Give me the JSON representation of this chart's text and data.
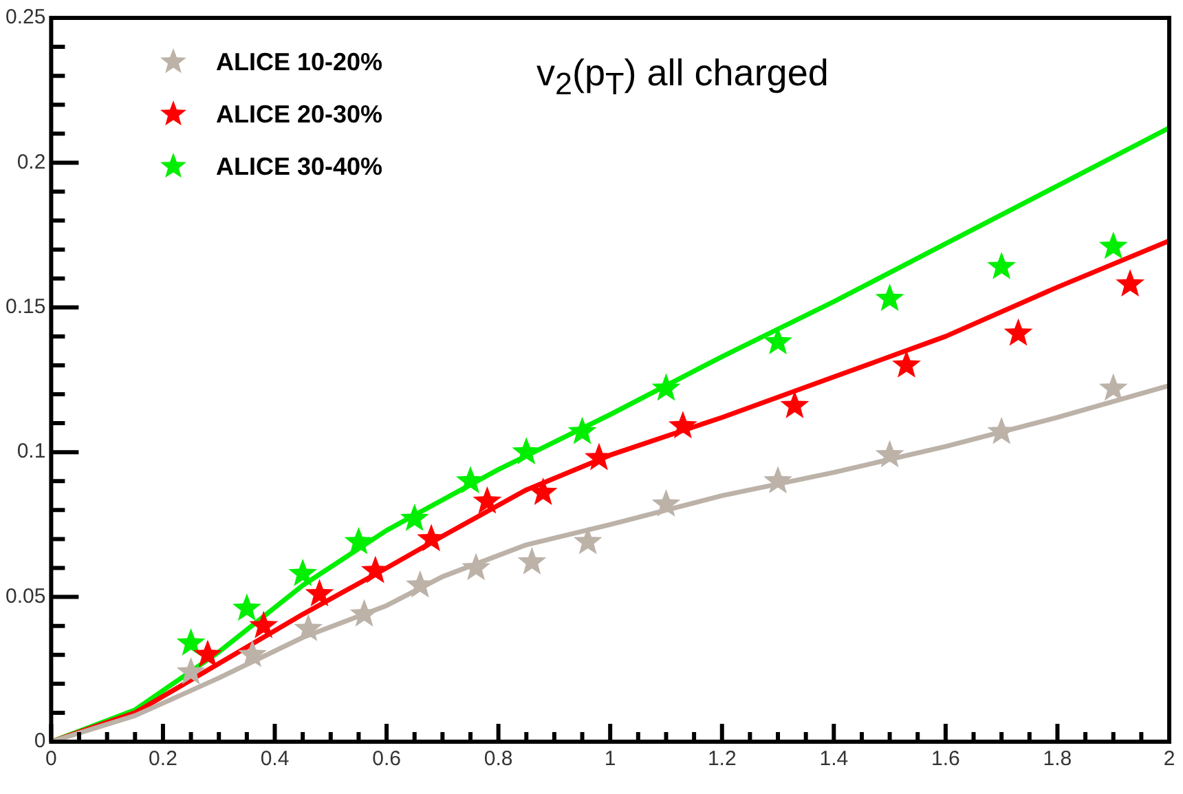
{
  "chart_data": {
    "type": "scatter",
    "annotations": [
      "v$_{2}$(p$_{T}$) all charged"
    ],
    "xlim": [
      0,
      2
    ],
    "xticks": [
      0,
      {
        "value": 0.05,
        "label": null
      },
      {
        "value": 0.1,
        "label": null
      },
      {
        "value": 0.15,
        "label": null
      },
      0.2,
      {
        "value": 0.25,
        "label": null
      },
      {
        "value": 0.3,
        "label": null
      },
      {
        "value": 0.35,
        "label": null
      },
      0.4,
      {
        "value": 0.45,
        "label": null
      },
      {
        "value": 0.5,
        "label": null
      },
      {
        "value": 0.55,
        "label": null
      },
      0.6,
      {
        "value": 0.65,
        "label": null
      },
      {
        "value": 0.7,
        "label": null
      },
      {
        "value": 0.75,
        "label": null
      },
      0.8,
      {
        "value": 0.85,
        "label": null
      },
      {
        "value": 0.9,
        "label": null
      },
      {
        "value": 0.95,
        "label": null
      },
      1,
      {
        "value": 1.05,
        "label": null
      },
      {
        "value": 1.1,
        "label": null
      },
      {
        "value": 1.15,
        "label": null
      },
      1.2,
      {
        "value": 1.25,
        "label": null
      },
      {
        "value": 1.3,
        "label": null
      },
      {
        "value": 1.35,
        "label": null
      },
      1.4,
      {
        "value": 1.45,
        "label": null
      },
      {
        "value": 1.5,
        "label": null
      },
      {
        "value": 1.55,
        "label": null
      },
      1.6,
      {
        "value": 1.65,
        "label": null
      },
      {
        "value": 1.7,
        "label": null
      },
      {
        "value": 1.75,
        "label": null
      },
      1.8,
      {
        "value": 1.85,
        "label": null
      },
      {
        "value": 1.9,
        "label": null
      },
      {
        "value": 1.95,
        "label": null
      },
      2
    ],
    "ylim": [
      0,
      0.25
    ],
    "yticks": [
      0,
      {
        "value": 0.01,
        "label": null
      },
      {
        "value": 0.02,
        "label": null
      },
      {
        "value": 0.03,
        "label": null
      },
      {
        "value": 0.04,
        "label": null
      },
      0.05,
      {
        "value": 0.06,
        "label": null
      },
      {
        "value": 0.07,
        "label": null
      },
      {
        "value": 0.08,
        "label": null
      },
      {
        "value": 0.09,
        "label": null
      },
      0.1,
      {
        "value": 0.11,
        "label": null
      },
      {
        "value": 0.12,
        "label": null
      },
      {
        "value": 0.13,
        "label": null
      },
      {
        "value": 0.14,
        "label": null
      },
      0.15,
      {
        "value": 0.16,
        "label": null
      },
      {
        "value": 0.17,
        "label": null
      },
      {
        "value": 0.18,
        "label": null
      },
      {
        "value": 0.19,
        "label": null
      },
      0.2,
      {
        "value": 0.21,
        "label": null
      },
      {
        "value": 0.22,
        "label": null
      },
      {
        "value": 0.23,
        "label": null
      },
      {
        "value": 0.24,
        "label": null
      },
      0.25
    ],
    "grid": false,
    "legend": "top left",
    "marker": "star",
    "series": [
      {
        "name": "ALICE 10-20%",
        "color": "#bcb2a8",
        "x": [
          0.25,
          0.36,
          0.46,
          0.56,
          0.66,
          0.76,
          0.86,
          0.96,
          1.1,
          1.3,
          1.5,
          1.7,
          1.9
        ],
        "values": [
          0.024,
          0.03,
          0.039,
          0.044,
          0.054,
          0.06,
          0.062,
          0.069,
          0.082,
          0.09,
          0.099,
          0.107,
          0.122
        ]
      },
      {
        "name": "ALICE 20-30%",
        "color": "#ff0000",
        "x": [
          0.28,
          0.38,
          0.48,
          0.58,
          0.68,
          0.78,
          0.88,
          0.98,
          1.13,
          1.33,
          1.53,
          1.73,
          1.93
        ],
        "values": [
          0.03,
          0.04,
          0.051,
          0.059,
          0.07,
          0.083,
          0.086,
          0.098,
          0.109,
          0.116,
          0.13,
          0.141,
          0.158
        ]
      },
      {
        "name": "ALICE 30-40%",
        "color": "#00ee00",
        "x": [
          0.25,
          0.35,
          0.45,
          0.55,
          0.65,
          0.75,
          0.85,
          0.95,
          1.1,
          1.3,
          1.5,
          1.7,
          1.9
        ],
        "values": [
          0.034,
          0.046,
          0.058,
          0.069,
          0.077,
          0.09,
          0.1,
          0.107,
          0.122,
          0.138,
          0.153,
          0.164,
          0.171
        ]
      },
      {
        "type": "line",
        "color": "#bcb2a8",
        "marker": "none",
        "x": [
          0,
          0.15,
          0.3,
          0.45,
          0.6,
          0.7,
          0.85,
          1,
          1.2,
          1.4,
          1.6,
          1.8,
          2
        ],
        "values": [
          0,
          0.009,
          0.022,
          0.036,
          0.047,
          0.057,
          0.068,
          0.075,
          0.085,
          0.093,
          0.102,
          0.112,
          0.123
        ]
      },
      {
        "type": "line",
        "color": "#ff0000",
        "marker": "none",
        "x": [
          0,
          0.15,
          0.3,
          0.45,
          0.6,
          0.7,
          0.85,
          1,
          1.2,
          1.4,
          1.6,
          1.8,
          2
        ],
        "values": [
          0,
          0.01,
          0.027,
          0.044,
          0.06,
          0.071,
          0.087,
          0.099,
          0.112,
          0.126,
          0.14,
          0.157,
          0.173
        ]
      },
      {
        "type": "line",
        "color": "#00ee00",
        "marker": "none",
        "x": [
          0,
          0.15,
          0.3,
          0.45,
          0.6,
          0.8,
          1,
          1.2,
          1.4,
          1.6,
          1.8,
          2
        ],
        "values": [
          0,
          0.011,
          0.031,
          0.054,
          0.073,
          0.094,
          0.113,
          0.133,
          0.152,
          0.172,
          0.192,
          0.212
        ]
      }
    ]
  }
}
